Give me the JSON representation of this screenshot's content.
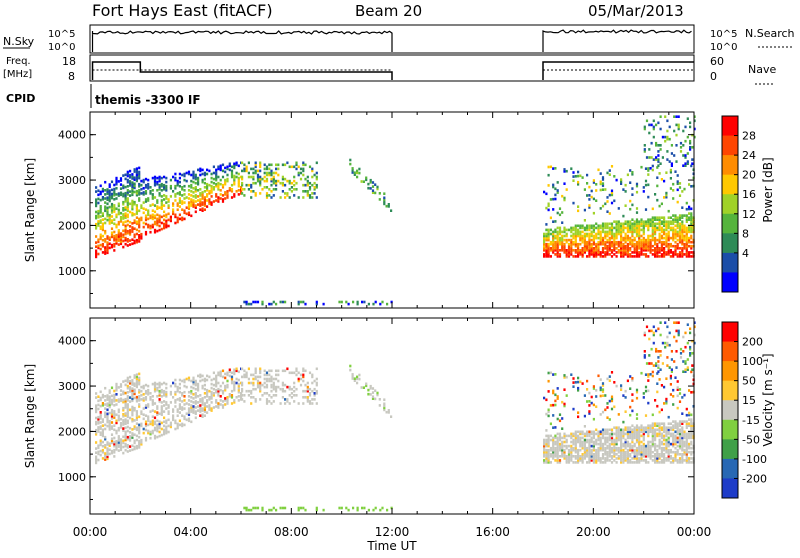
{
  "header": {
    "station": "Fort Hays East (fitACF)",
    "beam": "Beam 20",
    "date": "05/Mar/2013"
  },
  "top_panels": {
    "nsky_label": "N.Sky",
    "nsky_left_ticks": [
      "10^5",
      "10^0"
    ],
    "nsearch_label": "N.Search",
    "nsearch_right_ticks": [
      "10^5",
      "10^0"
    ],
    "freq_label_line1": "Freq.",
    "freq_label_line2": "[MHz]",
    "freq_ticks": [
      "18",
      "8"
    ],
    "nave_label": "Nave",
    "nave_ticks": [
      "60",
      "0"
    ],
    "cpid_label": "CPID",
    "cpid_text": "themis -3300 IF"
  },
  "colors": {
    "power_scale": [
      "#0000ff",
      "#1b4ea8",
      "#2e8b57",
      "#55b43c",
      "#a0d228",
      "#ffc800",
      "#ff8c00",
      "#ff4500",
      "#ff0000"
    ],
    "velocity_scale": [
      "#1e3cc8",
      "#2868b4",
      "#40a048",
      "#80d040",
      "#c8c8c0",
      "#ffc832",
      "#ff9600",
      "#ff5a00",
      "#ff0000"
    ]
  },
  "chart_data": [
    {
      "type": "heatmap",
      "name": "power",
      "xlabel": "Time UT",
      "ylabel": "Slant Range [km]",
      "x_range_hours": [
        0,
        24
      ],
      "ylim": [
        180,
        4500
      ],
      "y_ticks": [
        "1000",
        "2000",
        "3000",
        "4000"
      ],
      "colorbar_label": "Power [dB]",
      "colorbar_ticks": [
        "4",
        "8",
        "12",
        "16",
        "20",
        "24",
        "28"
      ]
    },
    {
      "type": "heatmap",
      "name": "velocity",
      "xlabel": "Time UT",
      "ylabel": "Slant Range [km]",
      "x_range_hours": [
        0,
        24
      ],
      "ylim": [
        180,
        4500
      ],
      "y_ticks": [
        "1000",
        "2000",
        "3000",
        "4000"
      ],
      "colorbar_label": "Velocity [m s⁻¹]",
      "colorbar_ticks": [
        "200",
        "100",
        "50",
        "15",
        "-15",
        "-50",
        "-100",
        "-200"
      ]
    }
  ],
  "x_axis": {
    "ticks": [
      "00:00",
      "04:00",
      "08:00",
      "12:00",
      "16:00",
      "20:00",
      "00:00"
    ],
    "label": "Time UT"
  }
}
